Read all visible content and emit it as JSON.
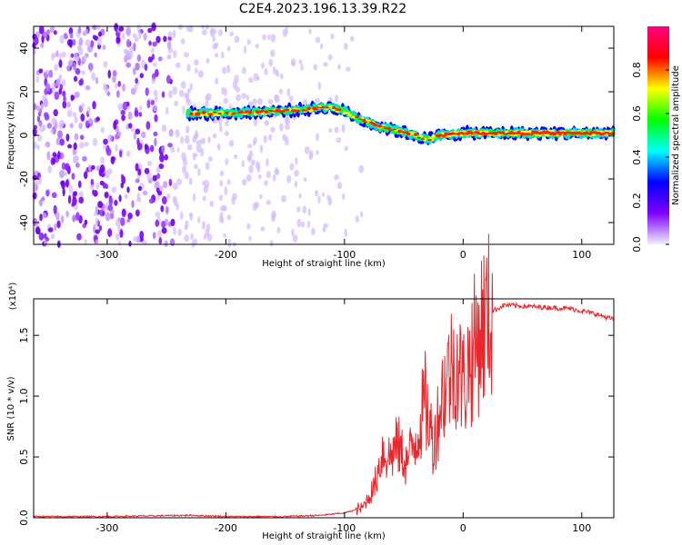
{
  "title": "C2E4.2023.196.13.39.R22",
  "chart_data": [
    {
      "type": "heatmap",
      "xlabel": "Height of straight line (km)",
      "ylabel": "Frequency (Hz)",
      "xlim": [
        -362,
        127
      ],
      "ylim": [
        -50,
        50
      ],
      "xticks": [
        -300,
        -200,
        -100,
        0,
        100
      ],
      "yticks": [
        -40,
        -20,
        0,
        20,
        40
      ],
      "colorbar": {
        "label": "Normalized spectral amplitude",
        "range": [
          0.0,
          1.0
        ],
        "ticks": [
          0.0,
          0.2,
          0.4,
          0.6,
          0.8
        ],
        "colormap": [
          "#f0f0ff",
          "#8000ff",
          "#0000ff",
          "#00ffff",
          "#00ff00",
          "#ffff00",
          "#ff0000",
          "#ff0080"
        ]
      },
      "noise_region_x": [
        -362,
        -100
      ],
      "ridge": {
        "x": [
          -232,
          -200,
          -160,
          -130,
          -115,
          -100,
          -85,
          -70,
          -55,
          -40,
          -30,
          -20,
          0,
          30,
          60,
          90,
          127
        ],
        "y": [
          10,
          10,
          11,
          12,
          13,
          11,
          7,
          4,
          2,
          0,
          -2,
          0,
          1,
          1,
          1,
          1,
          1
        ]
      },
      "grid": false
    },
    {
      "type": "line",
      "xlabel": "Height of straight line (km)",
      "ylabel": "SNR (10 * v/v)",
      "multiplier": "(x10⁴)",
      "xlim": [
        -362,
        127
      ],
      "ylim": [
        0,
        1.8
      ],
      "xticks": [
        -300,
        -200,
        -100,
        0,
        100
      ],
      "yticks": [
        "0.0",
        "0.5",
        "1.0",
        "1.5"
      ],
      "ytick_values": [
        0,
        0.5,
        1.0,
        1.5
      ],
      "series": [
        {
          "color": "#e8262b",
          "x": [
            -362,
            -300,
            -230,
            -200,
            -150,
            -120,
            -100,
            -85,
            -75,
            -68,
            -62,
            -55,
            -48,
            -40,
            -32,
            -25,
            -18,
            -12,
            -6,
            0,
            8,
            15,
            25,
            35,
            50,
            70,
            90,
            110,
            127
          ],
          "y": [
            0.01,
            0.01,
            0.02,
            0.01,
            0.01,
            0.02,
            0.04,
            0.08,
            0.25,
            0.55,
            0.5,
            0.6,
            0.45,
            0.65,
            0.95,
            0.6,
            1.0,
            1.2,
            1.3,
            1.1,
            1.35,
            1.55,
            1.7,
            1.75,
            1.74,
            1.73,
            1.72,
            1.68,
            1.63
          ]
        }
      ],
      "grid": false
    }
  ]
}
